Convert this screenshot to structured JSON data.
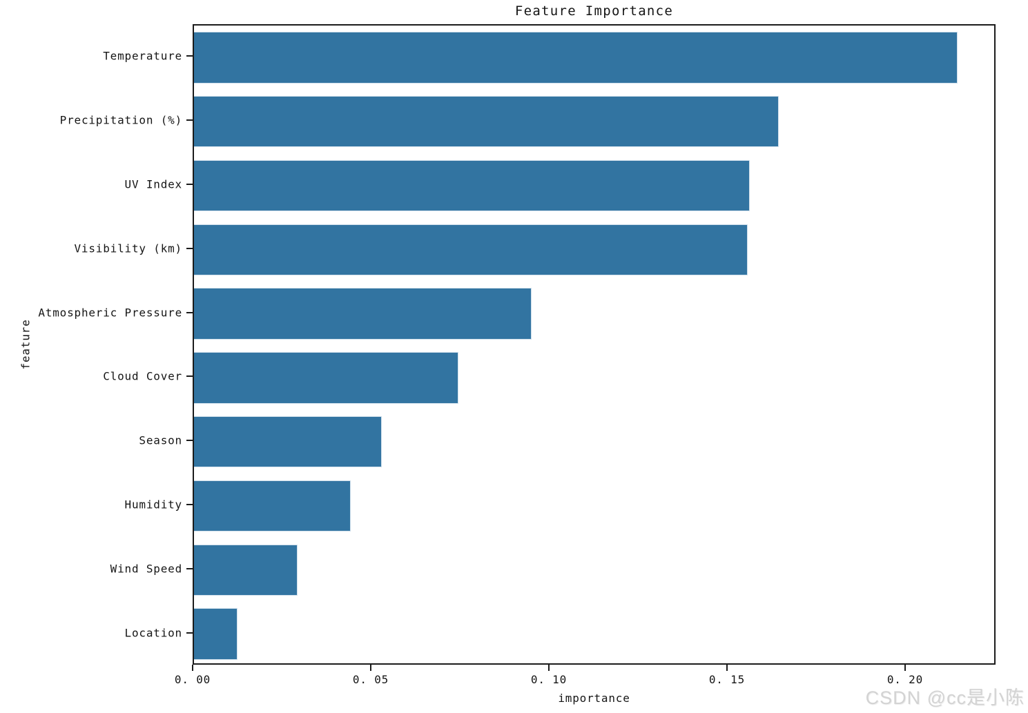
{
  "chart_data": {
    "type": "bar",
    "orientation": "horizontal",
    "title": "Feature Importance",
    "xlabel": "importance",
    "ylabel": "feature",
    "categories": [
      "Temperature",
      "Precipitation (%)",
      "UV Index",
      "Visibility (km)",
      "Atmospheric Pressure",
      "Cloud Cover",
      "Season",
      "Humidity",
      "Wind Speed",
      "Location"
    ],
    "values": [
      0.2143,
      0.1641,
      0.156,
      0.1554,
      0.0948,
      0.0742,
      0.0527,
      0.044,
      0.0291,
      0.0122
    ],
    "xlim": [
      0,
      0.2254
    ],
    "x_ticks": [
      0.0,
      0.05,
      0.1,
      0.15,
      0.2
    ],
    "x_tick_labels": [
      "0. 00",
      "0. 05",
      "0. 10",
      "0. 15",
      "0. 20"
    ],
    "bar_color": "#3274a1",
    "bar_height_fraction": 0.8,
    "grid": false,
    "legend": null
  },
  "watermark": {
    "text": "CSDN @cc是小陈",
    "color": "#d3d3d3"
  }
}
